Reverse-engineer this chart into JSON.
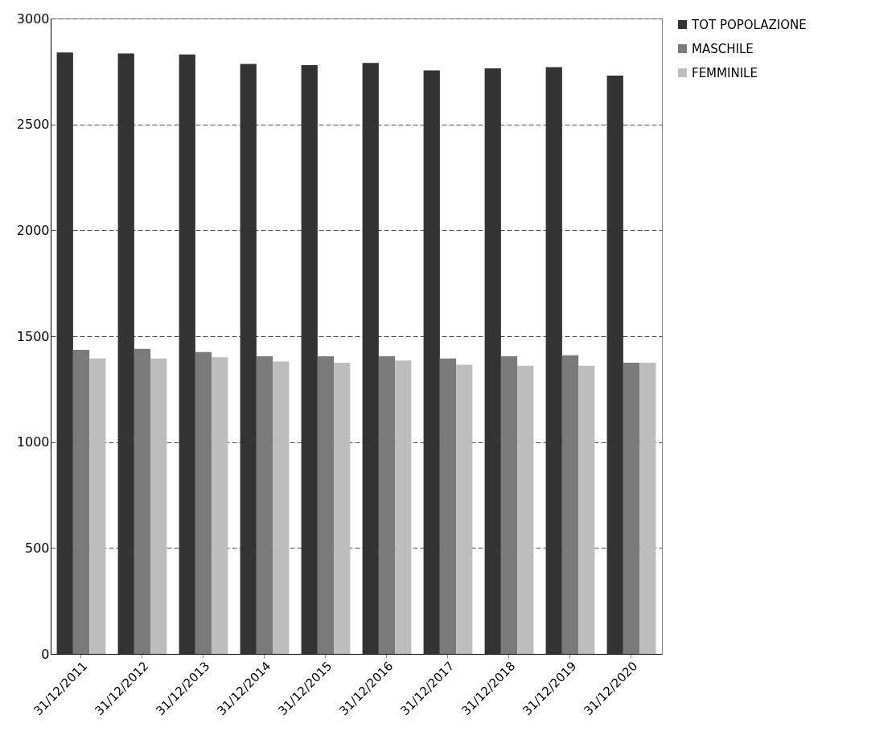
{
  "chart_data": {
    "type": "bar",
    "categories": [
      "31/12/2011",
      "31/12/2012",
      "31/12/2013",
      "31/12/2014",
      "31/12/2015",
      "31/12/2016",
      "31/12/2017",
      "31/12/2018",
      "31/12/2019",
      "31/12/2020"
    ],
    "series": [
      {
        "name": "TOT  POPOLAZIONE",
        "color": "#333333",
        "values": [
          2840,
          2835,
          2830,
          2785,
          2780,
          2790,
          2755,
          2765,
          2770,
          2730
        ]
      },
      {
        "name": "MASCHILE",
        "color": "#7a7a7a",
        "values": [
          1435,
          1440,
          1425,
          1405,
          1405,
          1405,
          1395,
          1405,
          1410,
          1375
        ]
      },
      {
        "name": "FEMMINILE",
        "color": "#bdbdbd",
        "values": [
          1395,
          1395,
          1400,
          1380,
          1375,
          1385,
          1365,
          1360,
          1360,
          1375
        ]
      }
    ],
    "ylim": [
      0,
      3000
    ],
    "yticks": [
      0,
      500,
      1000,
      1500,
      2000,
      2500,
      3000
    ],
    "grid": "y",
    "legend": "right"
  }
}
